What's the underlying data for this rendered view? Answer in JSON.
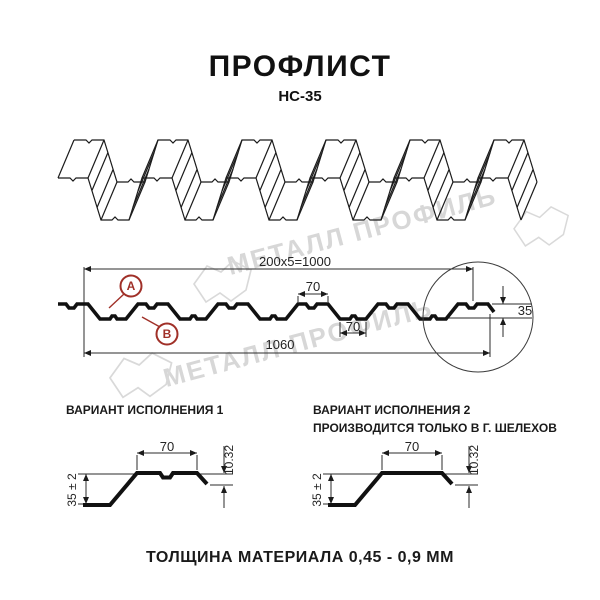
{
  "header": {
    "title": "ПРОФЛИСТ",
    "subtitle": "НС-35"
  },
  "watermark": {
    "text": "МЕТАЛЛ ПРОФИЛЬ",
    "color": "#d7d7d7",
    "logo_icon": "metal-profil-logo"
  },
  "cross_section": {
    "dim_width_top": "200x5=1000",
    "dim_width_bottom": "1060",
    "dim_rib_top": "70",
    "dim_rib_bottom": "70",
    "dim_height": "35",
    "label_a": "А",
    "label_b": "В",
    "accent_color": "#a03028",
    "line_color": "#1b1b1b"
  },
  "variant1": {
    "title": "ВАРИАНТ ИСПОЛНЕНИЯ 1",
    "dim_flange": "70",
    "dim_lip": "10.32",
    "dim_height": "35 ± 2"
  },
  "variant2": {
    "title": "ВАРИАНТ ИСПОЛНЕНИЯ 2",
    "subtitle": "ПРОИЗВОДИТСЯ ТОЛЬКО В Г. ШЕЛЕХОВ",
    "dim_flange": "70",
    "dim_lip": "10.32",
    "dim_height": "35 ± 2"
  },
  "footer": {
    "text": "ТОЛЩИНА МАТЕРИАЛА 0,45 - 0,9 ММ"
  }
}
